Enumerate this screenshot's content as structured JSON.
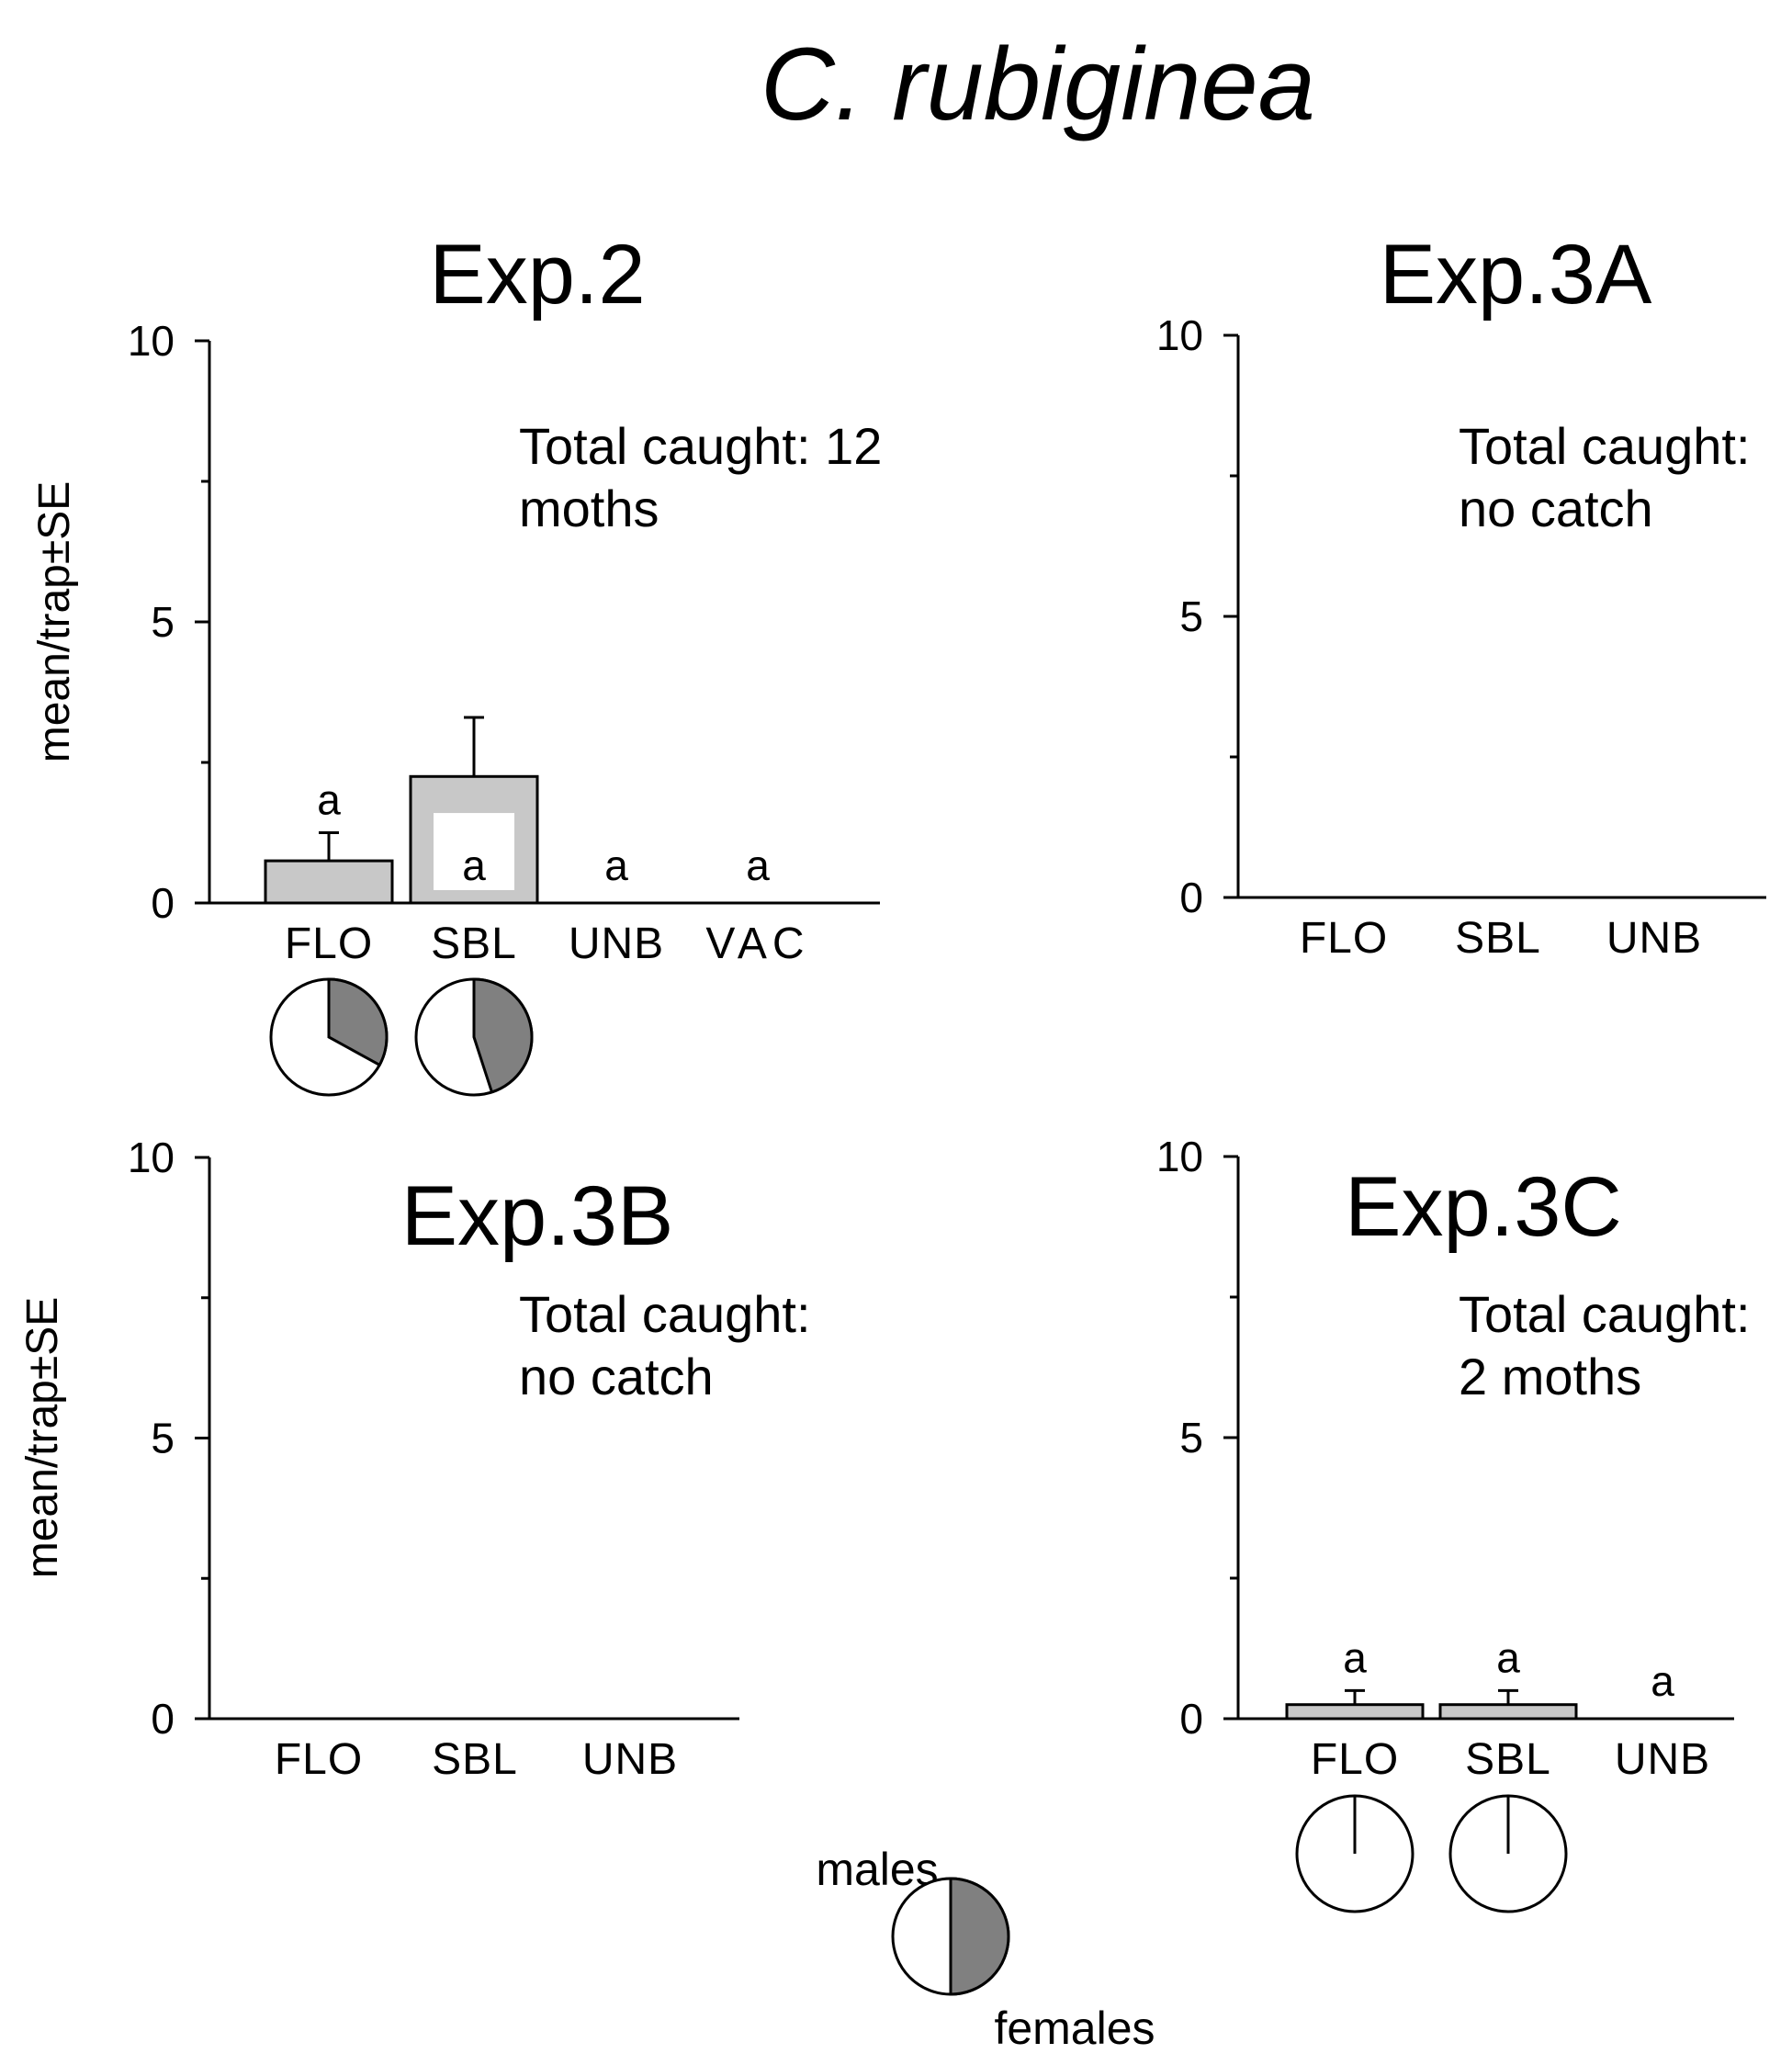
{
  "figure": {
    "title": "C. rubiginea",
    "legend": {
      "males_label": "males",
      "females_label": "females",
      "female_fraction": 0.5
    }
  },
  "colors": {
    "bar_fill": "#c8c8c8",
    "female_fill": "#808080",
    "axis": "#000000"
  },
  "chart_data": [
    {
      "id": "exp2",
      "type": "bar",
      "title": "Exp.2",
      "ylabel": "mean/trap±SE",
      "ylim": [
        0,
        10
      ],
      "yticks": [
        0,
        5,
        10
      ],
      "total_caught_line1": "Total caught: 12",
      "total_caught_line2": "moths",
      "categories": [
        "FLO",
        "SBL",
        "UNB",
        "VAC"
      ],
      "values": [
        0.75,
        2.25,
        0,
        0
      ],
      "errors": [
        0.5,
        1.05,
        0,
        0
      ],
      "sig_letters": [
        "a",
        "a",
        "a",
        "a"
      ],
      "female_fraction": [
        0.33,
        0.45,
        null,
        null
      ]
    },
    {
      "id": "exp3a",
      "type": "bar",
      "title": "Exp.3A",
      "ylabel": "",
      "ylim": [
        0,
        10
      ],
      "yticks": [
        0,
        5,
        10
      ],
      "total_caught_line1": "Total caught:",
      "total_caught_line2": "no catch",
      "categories": [
        "FLO",
        "SBL",
        "UNB"
      ],
      "values": [
        0,
        0,
        0
      ],
      "errors": [
        0,
        0,
        0
      ],
      "sig_letters": [
        "",
        "",
        ""
      ],
      "female_fraction": [
        null,
        null,
        null
      ]
    },
    {
      "id": "exp3b",
      "type": "bar",
      "title": "Exp.3B",
      "ylabel": "mean/trap±SE",
      "ylim": [
        0,
        10
      ],
      "yticks": [
        0,
        5,
        10
      ],
      "total_caught_line1": "Total caught:",
      "total_caught_line2": "no catch",
      "categories": [
        "FLO",
        "SBL",
        "UNB"
      ],
      "values": [
        0,
        0,
        0
      ],
      "errors": [
        0,
        0,
        0
      ],
      "sig_letters": [
        "",
        "",
        ""
      ],
      "female_fraction": [
        null,
        null,
        null
      ]
    },
    {
      "id": "exp3c",
      "type": "bar",
      "title": "Exp.3C",
      "ylabel": "",
      "ylim": [
        0,
        10
      ],
      "yticks": [
        0,
        5,
        10
      ],
      "total_caught_line1": "Total caught:",
      "total_caught_line2": "2 moths",
      "categories": [
        "FLO",
        "SBL",
        "UNB"
      ],
      "values": [
        0.25,
        0.25,
        0
      ],
      "errors": [
        0.25,
        0.25,
        0
      ],
      "sig_letters": [
        "a",
        "a",
        "a"
      ],
      "female_fraction": [
        0,
        0,
        null
      ]
    }
  ]
}
